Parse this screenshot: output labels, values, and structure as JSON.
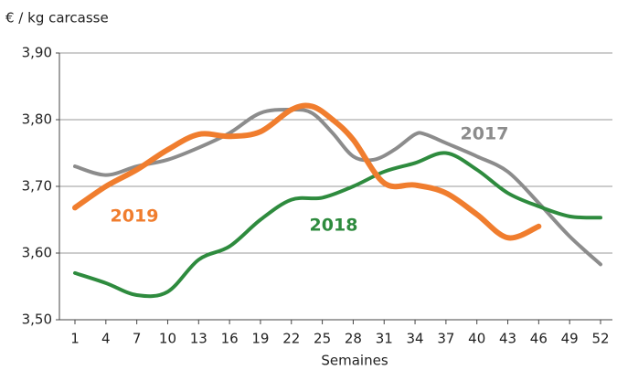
{
  "chart_data": {
    "type": "line",
    "title": "€ / kg carcasse",
    "x_label": "Semaines",
    "xlim": [
      1,
      52
    ],
    "xticks": [
      1,
      4,
      7,
      10,
      13,
      16,
      19,
      22,
      25,
      28,
      31,
      34,
      37,
      40,
      43,
      46,
      49,
      52
    ],
    "ylim": [
      3.5,
      3.9
    ],
    "yticks": [
      {
        "value": 3.5,
        "label": "3,50"
      },
      {
        "value": 3.6,
        "label": "3,60"
      },
      {
        "value": 3.7,
        "label": "3,70"
      },
      {
        "value": 3.8,
        "label": "3,80"
      },
      {
        "value": 3.9,
        "label": "3,90"
      }
    ],
    "grid": true,
    "series": [
      {
        "name": "2017",
        "color": "#8c8c8c",
        "x": [
          1,
          4,
          7,
          10,
          13,
          16,
          19,
          22,
          24,
          26,
          28,
          30,
          32,
          34,
          35,
          37,
          40,
          43,
          46,
          49,
          52
        ],
        "values": [
          3.73,
          3.717,
          3.73,
          3.74,
          3.758,
          3.78,
          3.81,
          3.815,
          3.81,
          3.78,
          3.745,
          3.74,
          3.755,
          3.778,
          3.778,
          3.765,
          3.745,
          3.722,
          3.675,
          3.625,
          3.583
        ]
      },
      {
        "name": "2018",
        "color": "#2e8b3e",
        "x": [
          1,
          4,
          7,
          10,
          13,
          16,
          19,
          22,
          25,
          28,
          31,
          34,
          37,
          40,
          43,
          46,
          49,
          52
        ],
        "values": [
          3.57,
          3.555,
          3.537,
          3.542,
          3.59,
          3.61,
          3.65,
          3.68,
          3.683,
          3.7,
          3.722,
          3.735,
          3.75,
          3.725,
          3.69,
          3.67,
          3.655,
          3.653
        ]
      },
      {
        "name": "2019",
        "color": "#f07d2e",
        "x": [
          1,
          4,
          7,
          10,
          13,
          16,
          19,
          22,
          24,
          26,
          28,
          31,
          34,
          37,
          40,
          43,
          46
        ],
        "values": [
          3.668,
          3.7,
          3.725,
          3.755,
          3.778,
          3.775,
          3.782,
          3.815,
          3.82,
          3.8,
          3.77,
          3.705,
          3.702,
          3.69,
          3.658,
          3.623,
          3.64
        ]
      }
    ]
  }
}
